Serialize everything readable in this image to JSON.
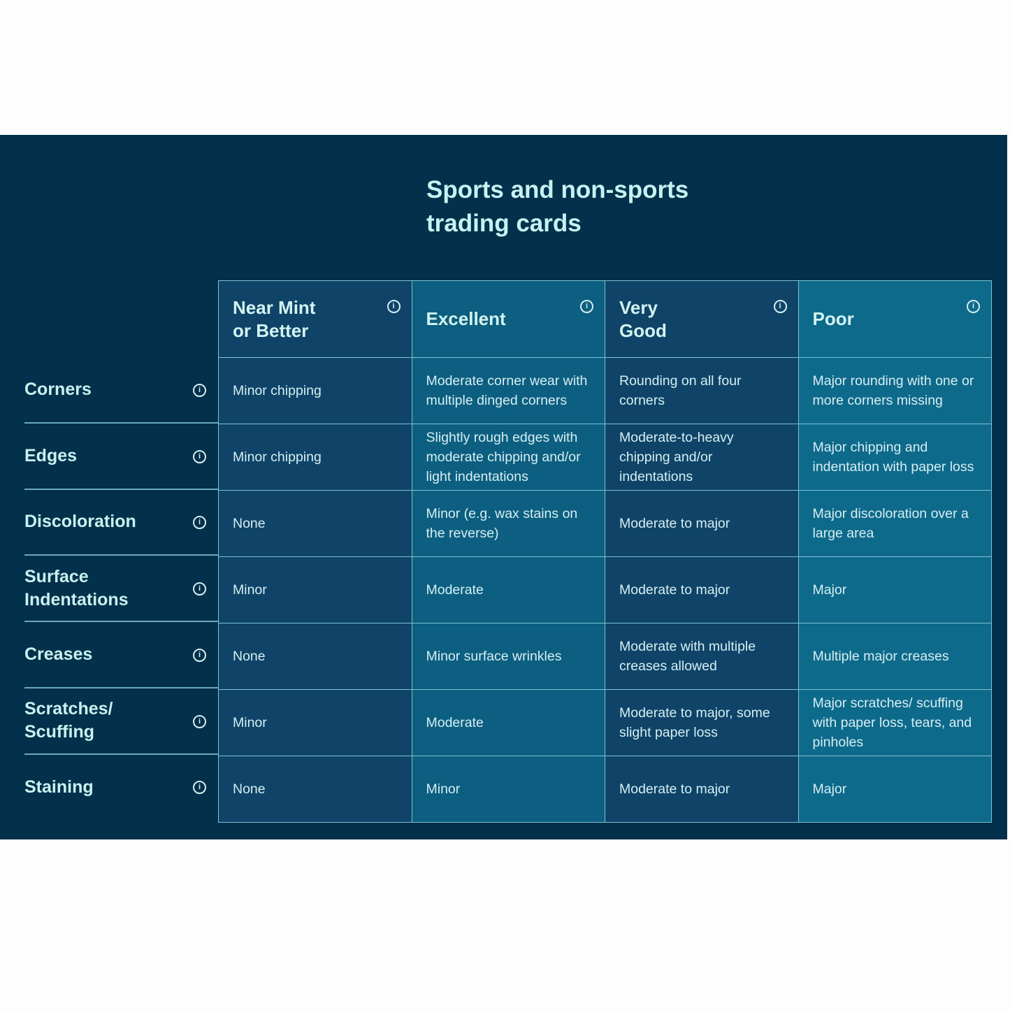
{
  "title": "Sports and non-sports\ntrading cards",
  "columns": [
    {
      "label": "Near Mint\nor Better"
    },
    {
      "label": "Excellent"
    },
    {
      "label": "Very\nGood"
    },
    {
      "label": "Poor"
    }
  ],
  "rows": [
    {
      "label": "Corners",
      "cells": [
        "Minor chipping",
        "Moderate corner wear with multiple dinged corners",
        "Rounding on all four corners",
        "Major rounding with one or more corners missing"
      ]
    },
    {
      "label": "Edges",
      "cells": [
        "Minor chipping",
        "Slightly rough edges with moderate chipping and/or light indentations",
        "Moderate-to-heavy chipping and/or indentations",
        "Major chipping and indentation with paper loss"
      ]
    },
    {
      "label": "Discoloration",
      "cells": [
        "None",
        "Minor (e.g. wax stains on the reverse)",
        "Moderate to major",
        "Major discoloration over a large area"
      ]
    },
    {
      "label": "Surface Indentations",
      "cells": [
        "Minor",
        "Moderate",
        "Moderate to major",
        "Major"
      ]
    },
    {
      "label": "Creases",
      "cells": [
        "None",
        "Minor surface wrinkles",
        "Moderate with multiple creases allowed",
        "Multiple major creases"
      ]
    },
    {
      "label": "Scratches/ Scuffing",
      "cells": [
        "Minor",
        "Moderate",
        "Moderate to major, some slight paper loss",
        "Major scratches/ scuffing with paper loss, tears, and pinholes"
      ]
    },
    {
      "label": "Staining",
      "cells": [
        "None",
        "Minor",
        "Moderate to major",
        "Major"
      ]
    }
  ],
  "icons": {
    "info": "info-icon"
  },
  "colors": {
    "background": "#03304a",
    "title": "#c6f3f2",
    "border": "#7cc3d6"
  }
}
